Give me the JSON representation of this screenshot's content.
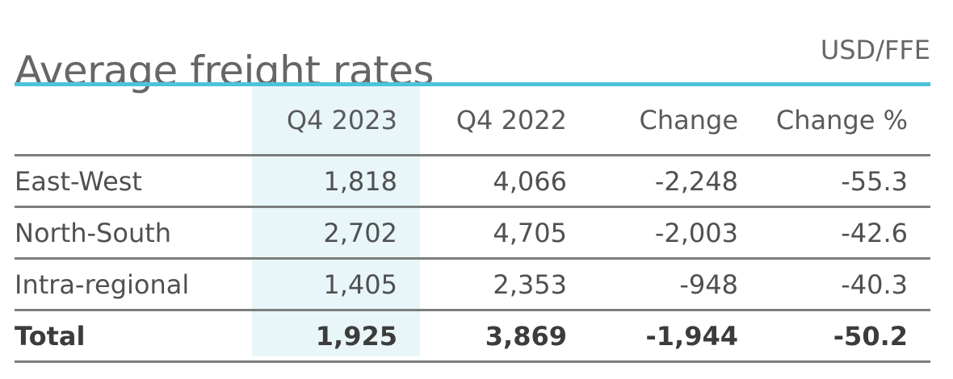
{
  "title": "Average freight rates",
  "unit": "USD/FFE",
  "colors": {
    "accent_rule": "#4cc3dc",
    "highlight_column": "#e8f6fa",
    "row_rule": "#7d7d7d",
    "text": "#505050"
  },
  "table": {
    "headers": [
      "",
      "Q4 2023",
      "Q4 2022",
      "Change",
      "Change %"
    ],
    "highlighted_column": "Q4 2023",
    "rows": [
      {
        "label": "East-West",
        "q4_2023": "1,818",
        "q4_2022": "4,066",
        "change": "-2,248",
        "change_pct": "-55.3"
      },
      {
        "label": "North-South",
        "q4_2023": "2,702",
        "q4_2022": "4,705",
        "change": "-2,003",
        "change_pct": "-42.6"
      },
      {
        "label": "Intra-regional",
        "q4_2023": "1,405",
        "q4_2022": "2,353",
        "change": "-948",
        "change_pct": "-40.3"
      }
    ],
    "total": {
      "label": "Total",
      "q4_2023": "1,925",
      "q4_2022": "3,869",
      "change": "-1,944",
      "change_pct": "-50.2"
    }
  }
}
